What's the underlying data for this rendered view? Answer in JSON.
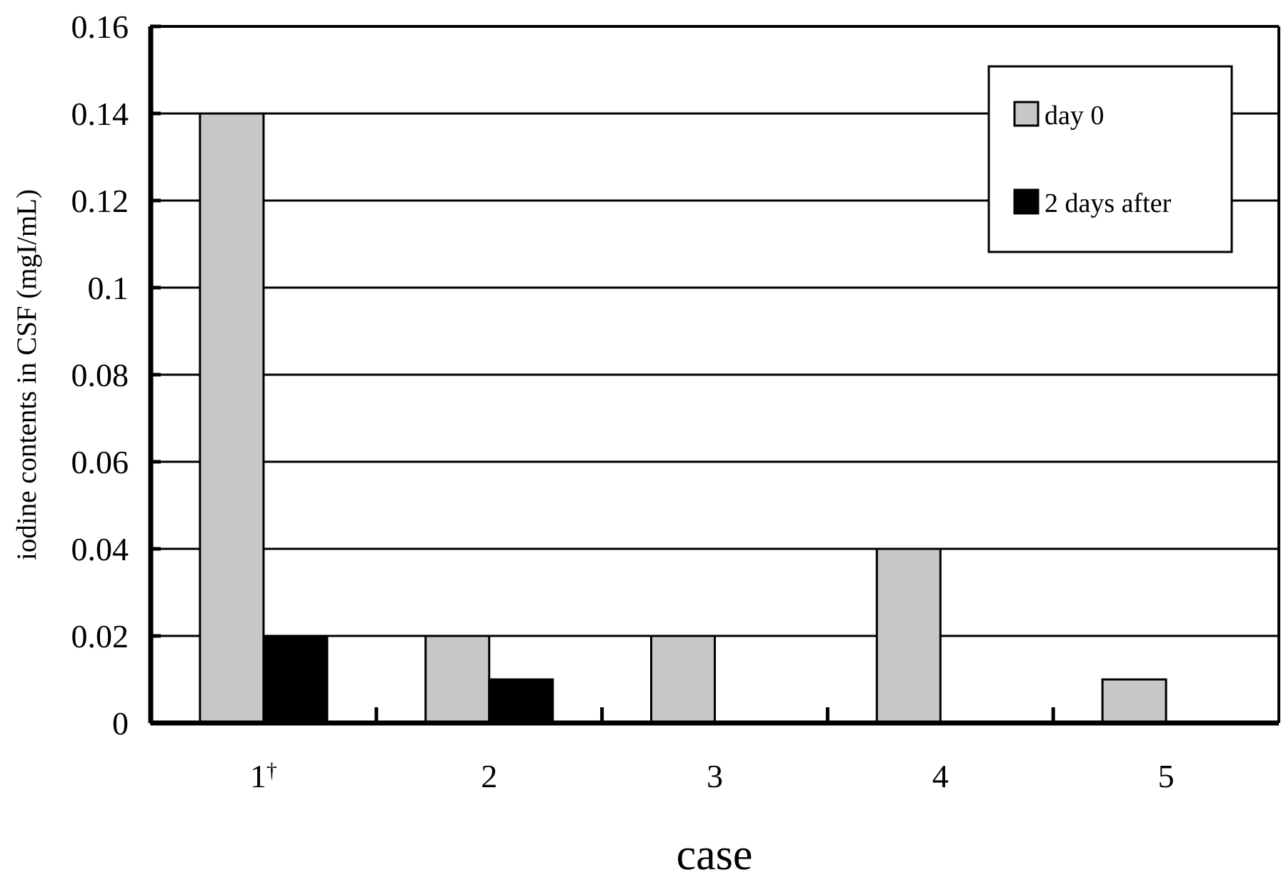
{
  "chart_data": {
    "type": "bar",
    "title": "",
    "xlabel": "case",
    "ylabel": "iodine contents in CSF (mgI/mL)",
    "categories": [
      "1",
      "2",
      "3",
      "4",
      "5"
    ],
    "category_marks": [
      "†",
      "",
      "",
      "",
      ""
    ],
    "series": [
      {
        "name": "day 0",
        "color": "#c8c8c8",
        "values": [
          0.14,
          0.02,
          0.02,
          0.04,
          0.01
        ]
      },
      {
        "name": "2 days after",
        "color": "#000000",
        "values": [
          0.02,
          0.01,
          0,
          0,
          0
        ]
      }
    ],
    "ylim": [
      0,
      0.16
    ],
    "yticks": [
      0,
      0.02,
      0.04,
      0.06,
      0.08,
      0.1,
      0.12,
      0.14,
      0.16
    ],
    "ytick_labels": [
      "0",
      "0.02",
      "0.04",
      "0.06",
      "0.08",
      "0.1",
      "0.12",
      "0.14",
      "0.16"
    ],
    "grid": true,
    "legend_position": "top-right"
  }
}
